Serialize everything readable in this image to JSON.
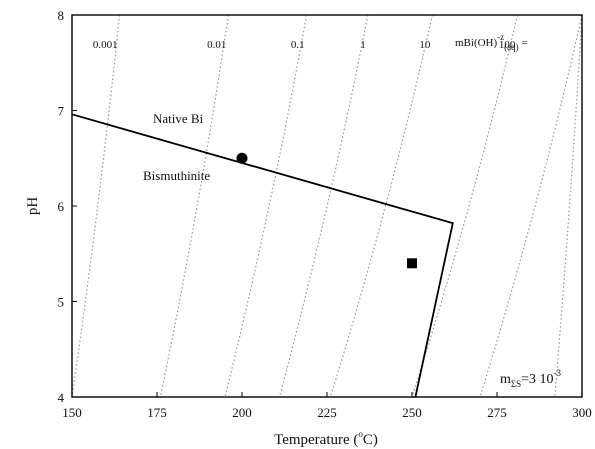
{
  "chart_data": {
    "type": "line",
    "xlabel_main": "Temperature (",
    "xlabel_sup": "o",
    "xlabel_end": "C)",
    "ylabel": "pH",
    "xlim": [
      150,
      300
    ],
    "ylim": [
      4,
      8
    ],
    "x_ticks": [
      150,
      175,
      200,
      225,
      250,
      275,
      300
    ],
    "y_ticks": [
      4,
      5,
      6,
      7,
      8
    ],
    "grid": false,
    "boundary": {
      "name": "Native Bi / Bismuthinite boundary",
      "points": [
        [
          150,
          6.96
        ],
        [
          262,
          5.82
        ],
        [
          251,
          4.0
        ]
      ]
    },
    "isopleths": [
      {
        "label": "0.001",
        "x_top": 164,
        "x_bottom": 150
      },
      {
        "label": "0.01",
        "x_top": 196,
        "x_bottom": 176
      },
      {
        "label": "0.1",
        "x_top": 219,
        "x_bottom": 195
      },
      {
        "label": "1",
        "x_top": 237,
        "x_bottom": 211
      },
      {
        "label": "10",
        "x_top": 256,
        "x_bottom": 226
      },
      {
        "label": "100",
        "x_top": 281,
        "x_bottom": 250
      },
      {
        "label": "",
        "x_top": 300,
        "x_bottom": 270
      },
      {
        "label": "",
        "x_top": 300,
        "x_bottom": 292
      }
    ],
    "isopleth_label_prefix": {
      "main": "mBi(OH)",
      "sup": "-z",
      "sub": "(aq)",
      "end": " ="
    },
    "regions": [
      {
        "label": "Native Bi"
      },
      {
        "label": "Bismuthinite"
      }
    ],
    "markers": [
      {
        "shape": "circle",
        "x": 200,
        "y": 6.5
      },
      {
        "shape": "square",
        "x": 250,
        "y": 5.4
      }
    ],
    "annotation": {
      "main": "m",
      "sub": "ΣS",
      "mid": "=3 10",
      "sup": "-3"
    }
  }
}
